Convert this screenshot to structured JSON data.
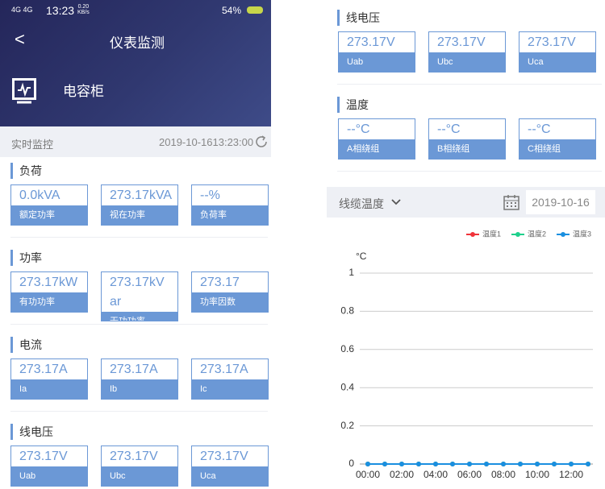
{
  "status_bar": {
    "time": "13:23",
    "net_speed": "0.20",
    "net_unit": "KB/s",
    "battery": "54%"
  },
  "header": {
    "title": "仪表监测",
    "device": "电容柜"
  },
  "toolbar": {
    "label": "实时监控",
    "datetime": "2019-10-1613:23:00"
  },
  "left_sections": [
    {
      "title": "负荷",
      "items": [
        {
          "value": "0.0kVA",
          "label": "额定功率"
        },
        {
          "value": "273.17kVA",
          "label": "视在功率"
        },
        {
          "value": "--%",
          "label": "负荷率"
        }
      ]
    },
    {
      "title": "功率",
      "items": [
        {
          "value": "273.17kW",
          "label": "有功功率"
        },
        {
          "value": "273.17kVar",
          "label": "无功功率"
        },
        {
          "value": "273.17",
          "label": "功率因数"
        }
      ]
    },
    {
      "title": "电流",
      "items": [
        {
          "value": "273.17A",
          "label": "Ia"
        },
        {
          "value": "273.17A",
          "label": "Ib"
        },
        {
          "value": "273.17A",
          "label": "Ic"
        }
      ]
    },
    {
      "title": "线电压",
      "items": [
        {
          "value": "273.17V",
          "label": "Uab"
        },
        {
          "value": "273.17V",
          "label": "Ubc"
        },
        {
          "value": "273.17V",
          "label": "Uca"
        }
      ]
    }
  ],
  "right_sections": [
    {
      "title": "线电压",
      "items": [
        {
          "value": "273.17V",
          "label": "Uab"
        },
        {
          "value": "273.17V",
          "label": "Ubc"
        },
        {
          "value": "273.17V",
          "label": "Uca"
        }
      ]
    },
    {
      "title": "温度",
      "items": [
        {
          "value": "--°C",
          "label": "A相绕组"
        },
        {
          "value": "--°C",
          "label": "B相绕组"
        },
        {
          "value": "--°C",
          "label": "C相绕组"
        }
      ]
    }
  ],
  "filter": {
    "label": "线缆温度",
    "date": "2019-10-16"
  },
  "chart_data": {
    "type": "line",
    "y_axis_label": "°C",
    "categories": [
      "00:00",
      null,
      "02:00",
      null,
      "04:00",
      null,
      "06:00",
      null,
      "08:00",
      null,
      "10:00",
      null,
      "12:00",
      null
    ],
    "series": [
      {
        "name": "温度1",
        "color": "#f0333a",
        "values": [
          0,
          0,
          0,
          0,
          0,
          0,
          0,
          0,
          0,
          0,
          0,
          0,
          0,
          0
        ]
      },
      {
        "name": "温度2",
        "color": "#1ed08c",
        "values": [
          0,
          0,
          0,
          0,
          0,
          0,
          0,
          0,
          0,
          0,
          0,
          0,
          0,
          0
        ]
      },
      {
        "name": "温度3",
        "color": "#1a8fe0",
        "values": [
          0,
          0,
          0,
          0,
          0,
          0,
          0,
          0,
          0,
          0,
          0,
          0,
          0,
          0
        ]
      }
    ],
    "ylim": [
      0,
      1
    ],
    "yticks": [
      0,
      0.2,
      0.4,
      0.6,
      0.8,
      1
    ],
    "grid": true,
    "legend": "top-right"
  }
}
